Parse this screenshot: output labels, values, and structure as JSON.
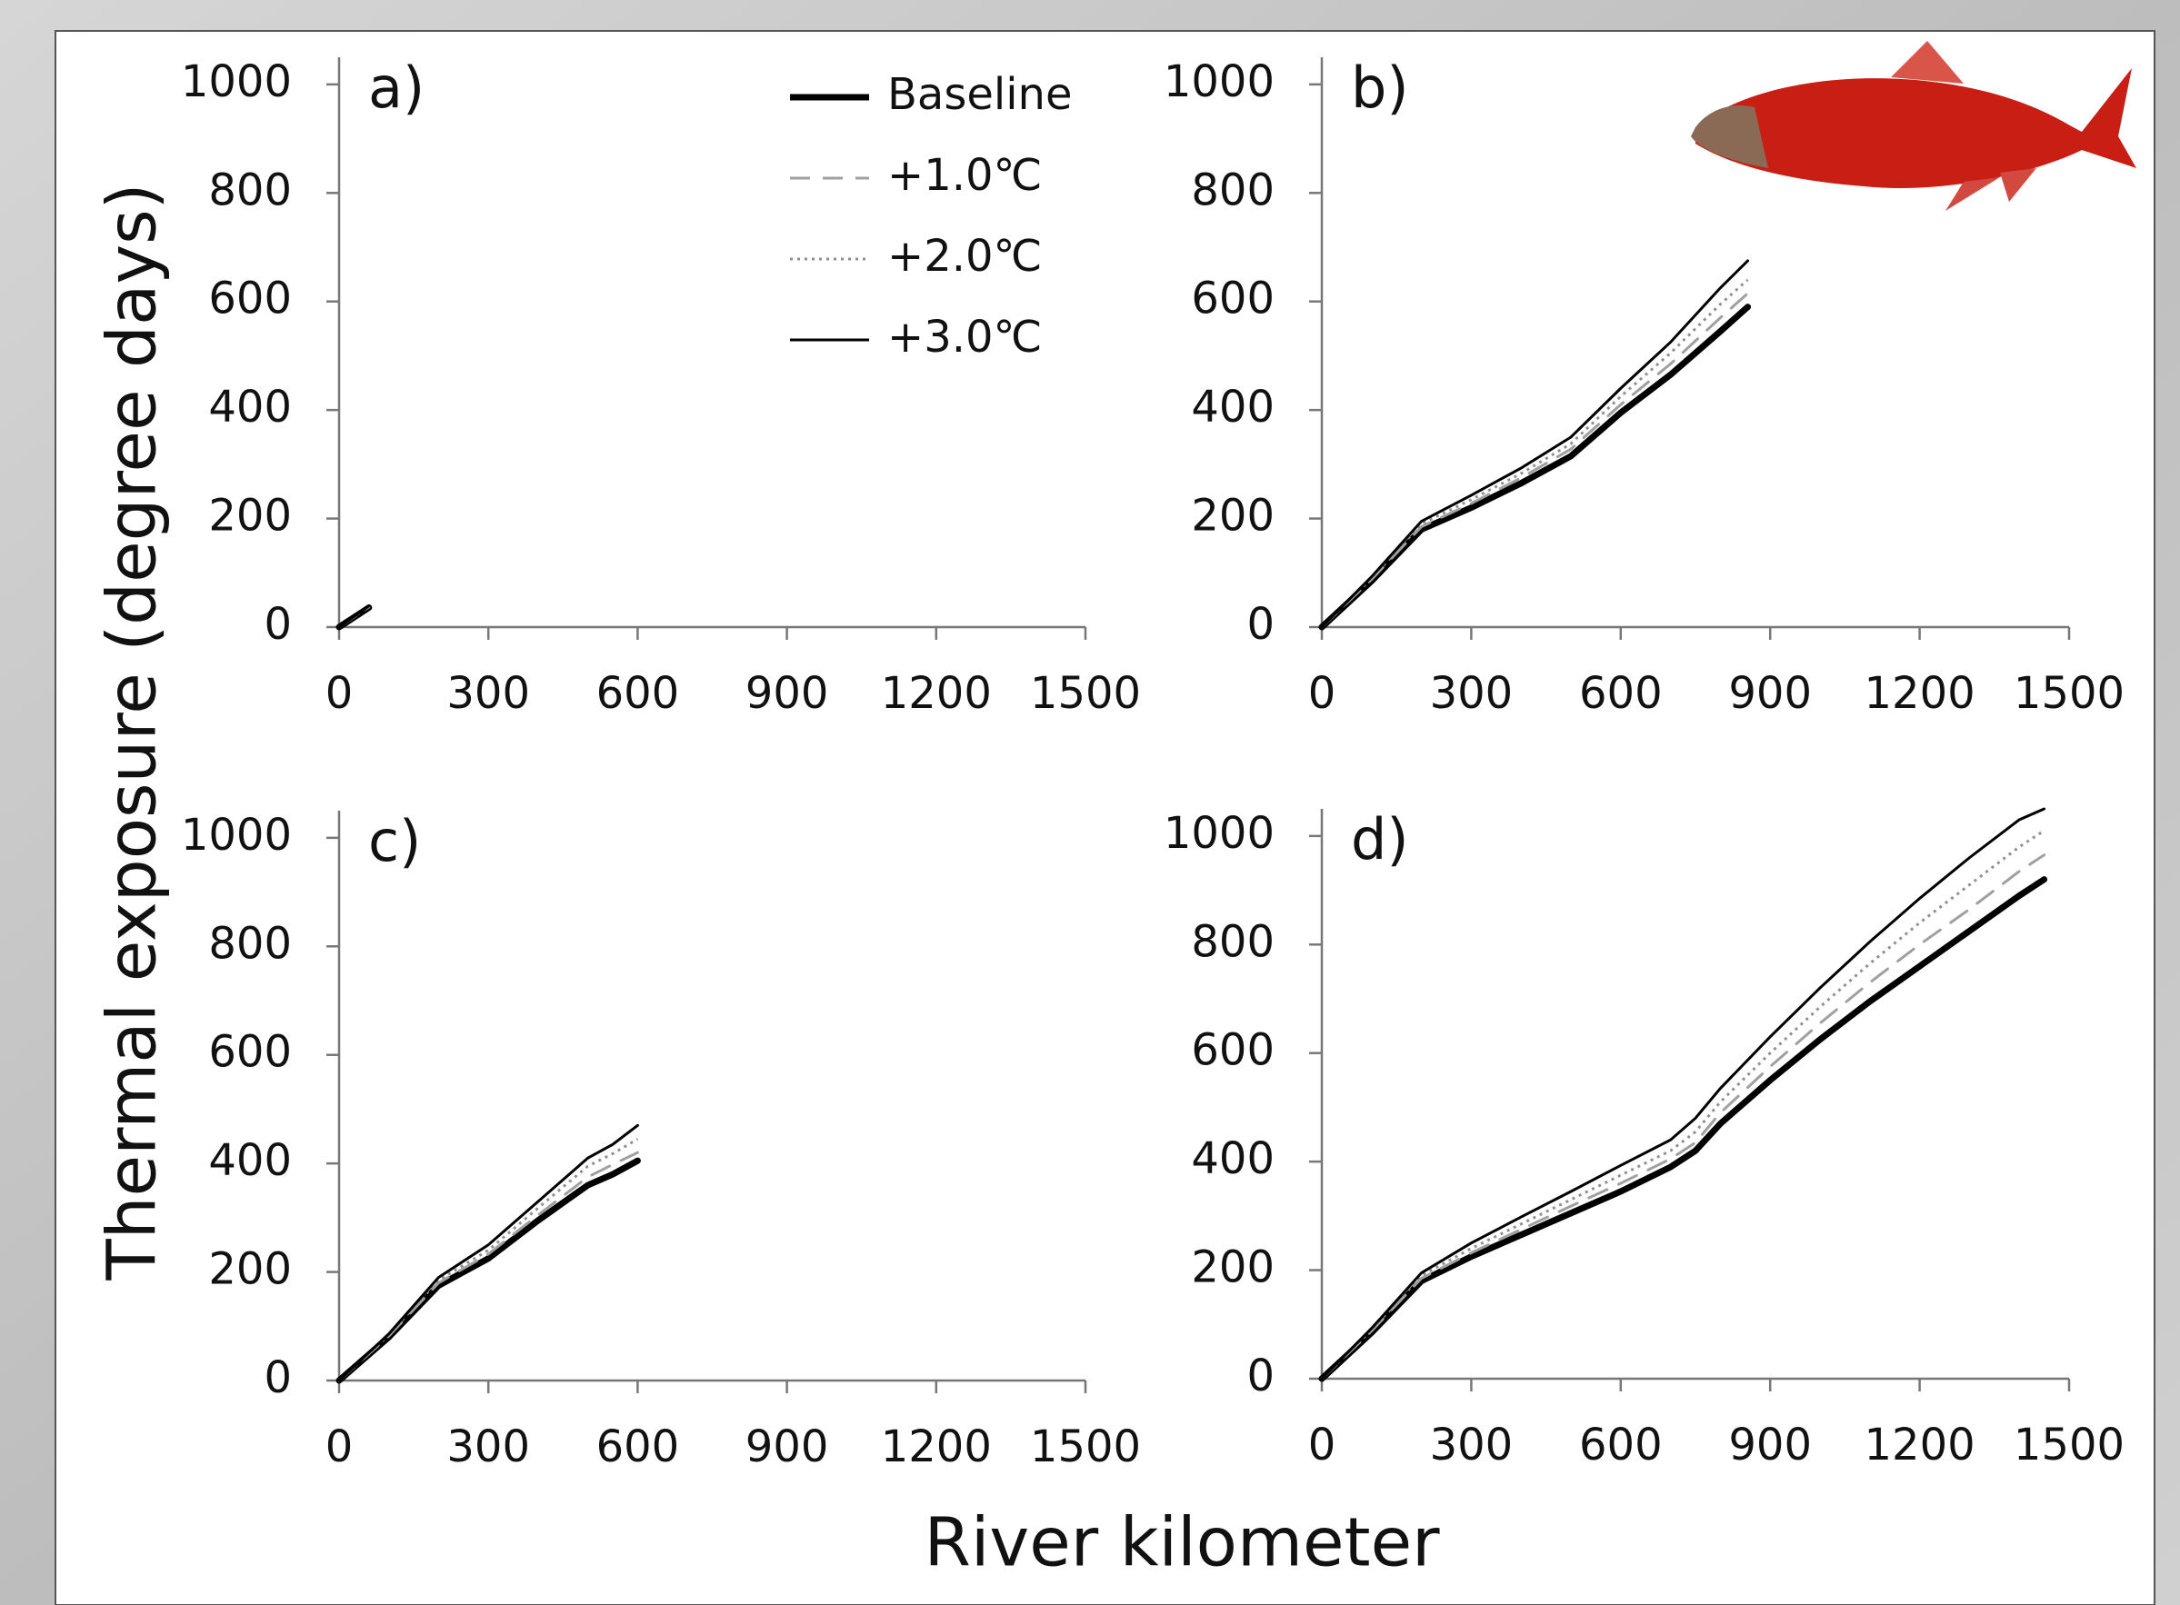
{
  "ylabel": "Thermal exposure (degree days)",
  "xlabel": "River kilometer",
  "chart_data": [
    {
      "type": "line",
      "label": "a)",
      "legend": "upper right",
      "xlim": [
        0,
        1500
      ],
      "ylim": [
        0,
        1050
      ],
      "xticks": [
        0,
        300,
        600,
        900,
        1200,
        1500
      ],
      "yticks": [
        0,
        200,
        400,
        600,
        800,
        1000
      ],
      "x": [
        0,
        60
      ],
      "series": [
        {
          "name": "Baseline",
          "color": "#000000",
          "style": "solid",
          "width": 7,
          "values": [
            0,
            36
          ]
        },
        {
          "name": "+1.0℃",
          "color": "#a0a0a0",
          "style": "dashed",
          "width": 3,
          "values": [
            0,
            37
          ]
        },
        {
          "name": "+2.0℃",
          "color": "#909090",
          "style": "dotted",
          "width": 3,
          "values": [
            0,
            38
          ]
        },
        {
          "name": "+3.0℃",
          "color": "#000000",
          "style": "solid",
          "width": 3,
          "values": [
            0,
            39
          ]
        }
      ]
    },
    {
      "type": "line",
      "label": "b)",
      "xlim": [
        0,
        1500
      ],
      "ylim": [
        0,
        1050
      ],
      "xticks": [
        0,
        300,
        600,
        900,
        1200,
        1500
      ],
      "yticks": [
        0,
        200,
        400,
        600,
        800,
        1000
      ],
      "x": [
        0,
        100,
        200,
        300,
        400,
        500,
        600,
        700,
        800,
        855
      ],
      "series": [
        {
          "name": "Baseline",
          "color": "#000000",
          "style": "solid",
          "width": 7,
          "values": [
            0,
            85,
            180,
            220,
            265,
            315,
            395,
            465,
            545,
            590
          ]
        },
        {
          "name": "+1.0℃",
          "color": "#a0a0a0",
          "style": "dashed",
          "width": 3,
          "values": [
            0,
            88,
            185,
            228,
            275,
            328,
            410,
            485,
            570,
            615
          ]
        },
        {
          "name": "+2.0℃",
          "color": "#909090",
          "style": "dotted",
          "width": 3,
          "values": [
            0,
            90,
            190,
            235,
            283,
            338,
            425,
            505,
            595,
            640
          ]
        },
        {
          "name": "+3.0℃",
          "color": "#000000",
          "style": "solid",
          "width": 3,
          "values": [
            0,
            93,
            195,
            243,
            293,
            350,
            440,
            525,
            625,
            675
          ]
        }
      ]
    },
    {
      "type": "line",
      "label": "c)",
      "xlim": [
        0,
        1500
      ],
      "ylim": [
        0,
        1050
      ],
      "xticks": [
        0,
        300,
        600,
        900,
        1200,
        1500
      ],
      "yticks": [
        0,
        200,
        400,
        600,
        800,
        1000
      ],
      "x": [
        0,
        100,
        200,
        300,
        400,
        500,
        550,
        600
      ],
      "series": [
        {
          "name": "Baseline",
          "color": "#000000",
          "style": "solid",
          "width": 7,
          "values": [
            0,
            80,
            175,
            225,
            295,
            360,
            380,
            405
          ]
        },
        {
          "name": "+1.0℃",
          "color": "#a0a0a0",
          "style": "dashed",
          "width": 3,
          "values": [
            0,
            82,
            180,
            233,
            305,
            375,
            398,
            420
          ]
        },
        {
          "name": "+2.0℃",
          "color": "#909090",
          "style": "dotted",
          "width": 3,
          "values": [
            0,
            84,
            185,
            240,
            318,
            395,
            418,
            445
          ]
        },
        {
          "name": "+3.0℃",
          "color": "#000000",
          "style": "solid",
          "width": 3,
          "values": [
            0,
            86,
            190,
            250,
            330,
            410,
            435,
            470
          ]
        }
      ]
    },
    {
      "type": "line",
      "label": "d)",
      "xlim": [
        0,
        1500
      ],
      "ylim": [
        0,
        1050
      ],
      "xticks": [
        0,
        300,
        600,
        900,
        1200,
        1500
      ],
      "yticks": [
        0,
        200,
        400,
        600,
        800,
        1000
      ],
      "x": [
        0,
        100,
        200,
        300,
        400,
        500,
        600,
        700,
        750,
        800,
        900,
        1000,
        1100,
        1200,
        1300,
        1400,
        1450
      ],
      "series": [
        {
          "name": "Baseline",
          "color": "#000000",
          "style": "solid",
          "width": 7,
          "values": [
            0,
            85,
            180,
            225,
            265,
            305,
            345,
            390,
            420,
            470,
            550,
            625,
            695,
            760,
            825,
            890,
            920
          ]
        },
        {
          "name": "+1.0℃",
          "color": "#a0a0a0",
          "style": "dashed",
          "width": 3,
          "values": [
            0,
            88,
            185,
            232,
            275,
            318,
            360,
            405,
            435,
            490,
            575,
            655,
            730,
            800,
            865,
            935,
            965
          ]
        },
        {
          "name": "+2.0℃",
          "color": "#909090",
          "style": "dotted",
          "width": 3,
          "values": [
            0,
            90,
            190,
            240,
            285,
            330,
            375,
            420,
            455,
            510,
            600,
            685,
            765,
            840,
            910,
            980,
            1010
          ]
        },
        {
          "name": "+3.0℃",
          "color": "#000000",
          "style": "solid",
          "width": 3,
          "values": [
            0,
            93,
            195,
            250,
            298,
            345,
            393,
            440,
            480,
            535,
            630,
            720,
            805,
            885,
            960,
            1030,
            1050
          ]
        }
      ]
    }
  ]
}
